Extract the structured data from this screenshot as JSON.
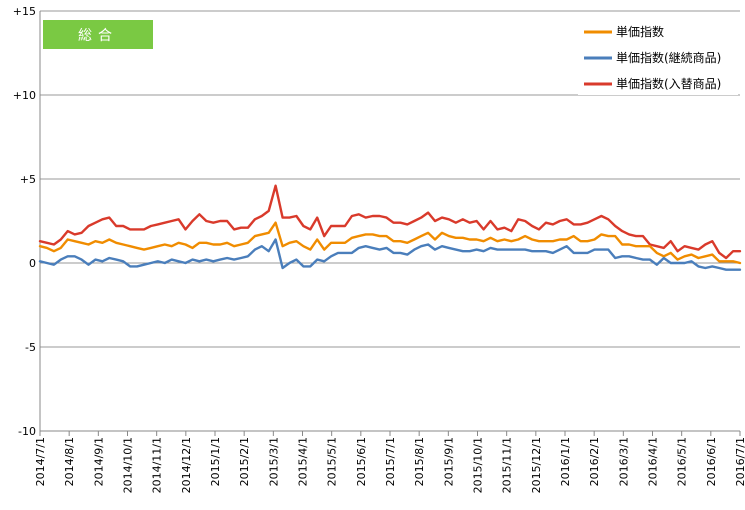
{
  "chart_data": {
    "type": "line",
    "badge": "総合",
    "badge_color": "#7ac943",
    "ylim": [
      -10,
      15
    ],
    "y_ticks": [
      {
        "value": 15,
        "label": "+15"
      },
      {
        "value": 10,
        "label": "+10"
      },
      {
        "value": 5,
        "label": "+5"
      },
      {
        "value": 0,
        "label": "0"
      },
      {
        "value": -5,
        "label": "-5"
      },
      {
        "value": -10,
        "label": "-10"
      }
    ],
    "x_tick_labels": [
      "2014/7/1",
      "2014/8/1",
      "2014/9/1",
      "2014/10/1",
      "2014/11/1",
      "2014/12/1",
      "2015/1/1",
      "2015/2/1",
      "2015/3/1",
      "2015/4/1",
      "2015/5/1",
      "2015/6/1",
      "2015/7/1",
      "2015/8/1",
      "2015/9/1",
      "2015/10/1",
      "2015/11/1",
      "2015/12/1",
      "2016/1/1",
      "2016/2/1",
      "2016/3/1",
      "2016/4/1",
      "2016/5/1",
      "2016/6/1",
      "2016/7/1"
    ],
    "grid": "horizontal",
    "legend_position": "top-right",
    "series": [
      {
        "name": "単価指数",
        "color": "#f08c00",
        "values": [
          1.0,
          0.9,
          0.7,
          0.9,
          1.4,
          1.3,
          1.2,
          1.1,
          1.3,
          1.2,
          1.4,
          1.2,
          1.1,
          1.0,
          0.9,
          0.8,
          0.9,
          1.0,
          1.1,
          1.0,
          1.2,
          1.1,
          0.9,
          1.2,
          1.2,
          1.1,
          1.1,
          1.2,
          1.0,
          1.1,
          1.2,
          1.6,
          1.7,
          1.8,
          2.4,
          1.0,
          1.2,
          1.3,
          1.0,
          0.8,
          1.4,
          0.8,
          1.2,
          1.2,
          1.2,
          1.5,
          1.6,
          1.7,
          1.7,
          1.6,
          1.6,
          1.3,
          1.3,
          1.2,
          1.4,
          1.6,
          1.8,
          1.4,
          1.8,
          1.6,
          1.5,
          1.5,
          1.4,
          1.4,
          1.3,
          1.5,
          1.3,
          1.4,
          1.3,
          1.4,
          1.6,
          1.4,
          1.3,
          1.3,
          1.3,
          1.4,
          1.4,
          1.6,
          1.3,
          1.3,
          1.4,
          1.7,
          1.6,
          1.6,
          1.1,
          1.1,
          1.0,
          1.0,
          1.0,
          0.6,
          0.4,
          0.6,
          0.2,
          0.4,
          0.5,
          0.3,
          0.4,
          0.5,
          0.1,
          0.1,
          0.1,
          0.0
        ]
      },
      {
        "name": "単価指数(継続商品)",
        "color": "#4a7ebb",
        "values": [
          0.1,
          0.0,
          -0.1,
          0.2,
          0.4,
          0.4,
          0.2,
          -0.1,
          0.2,
          0.1,
          0.3,
          0.2,
          0.1,
          -0.2,
          -0.2,
          -0.1,
          0.0,
          0.1,
          0.0,
          0.2,
          0.1,
          0.0,
          0.2,
          0.1,
          0.2,
          0.1,
          0.2,
          0.3,
          0.2,
          0.3,
          0.4,
          0.8,
          1.0,
          0.7,
          1.4,
          -0.3,
          0.0,
          0.2,
          -0.2,
          -0.2,
          0.2,
          0.1,
          0.4,
          0.6,
          0.6,
          0.6,
          0.9,
          1.0,
          0.9,
          0.8,
          0.9,
          0.6,
          0.6,
          0.5,
          0.8,
          1.0,
          1.1,
          0.8,
          1.0,
          0.9,
          0.8,
          0.7,
          0.7,
          0.8,
          0.7,
          0.9,
          0.8,
          0.8,
          0.8,
          0.8,
          0.8,
          0.7,
          0.7,
          0.7,
          0.6,
          0.8,
          1.0,
          0.6,
          0.6,
          0.6,
          0.8,
          0.8,
          0.8,
          0.3,
          0.4,
          0.4,
          0.3,
          0.2,
          0.2,
          -0.1,
          0.3,
          0.0,
          0.0,
          0.0,
          0.1,
          -0.2,
          -0.3,
          -0.2,
          -0.3,
          -0.4,
          -0.4,
          -0.4
        ]
      },
      {
        "name": "単価指数(入替商品)",
        "color": "#d93a2b",
        "values": [
          1.3,
          1.2,
          1.1,
          1.4,
          1.9,
          1.7,
          1.8,
          2.2,
          2.4,
          2.6,
          2.7,
          2.2,
          2.2,
          2.0,
          2.0,
          2.0,
          2.2,
          2.3,
          2.4,
          2.5,
          2.6,
          2.0,
          2.5,
          2.9,
          2.5,
          2.4,
          2.5,
          2.5,
          2.0,
          2.1,
          2.1,
          2.6,
          2.8,
          3.1,
          4.6,
          2.7,
          2.7,
          2.8,
          2.2,
          2.0,
          2.7,
          1.6,
          2.2,
          2.2,
          2.2,
          2.8,
          2.9,
          2.7,
          2.8,
          2.8,
          2.7,
          2.4,
          2.4,
          2.3,
          2.5,
          2.7,
          3.0,
          2.5,
          2.7,
          2.6,
          2.4,
          2.6,
          2.4,
          2.5,
          2.0,
          2.5,
          2.0,
          2.1,
          1.9,
          2.6,
          2.5,
          2.2,
          2.0,
          2.4,
          2.3,
          2.5,
          2.6,
          2.3,
          2.3,
          2.4,
          2.6,
          2.8,
          2.6,
          2.2,
          1.9,
          1.7,
          1.6,
          1.6,
          1.1,
          1.0,
          0.9,
          1.3,
          0.7,
          1.0,
          0.9,
          0.8,
          1.1,
          1.3,
          0.6,
          0.3,
          0.7,
          0.7
        ]
      }
    ]
  }
}
